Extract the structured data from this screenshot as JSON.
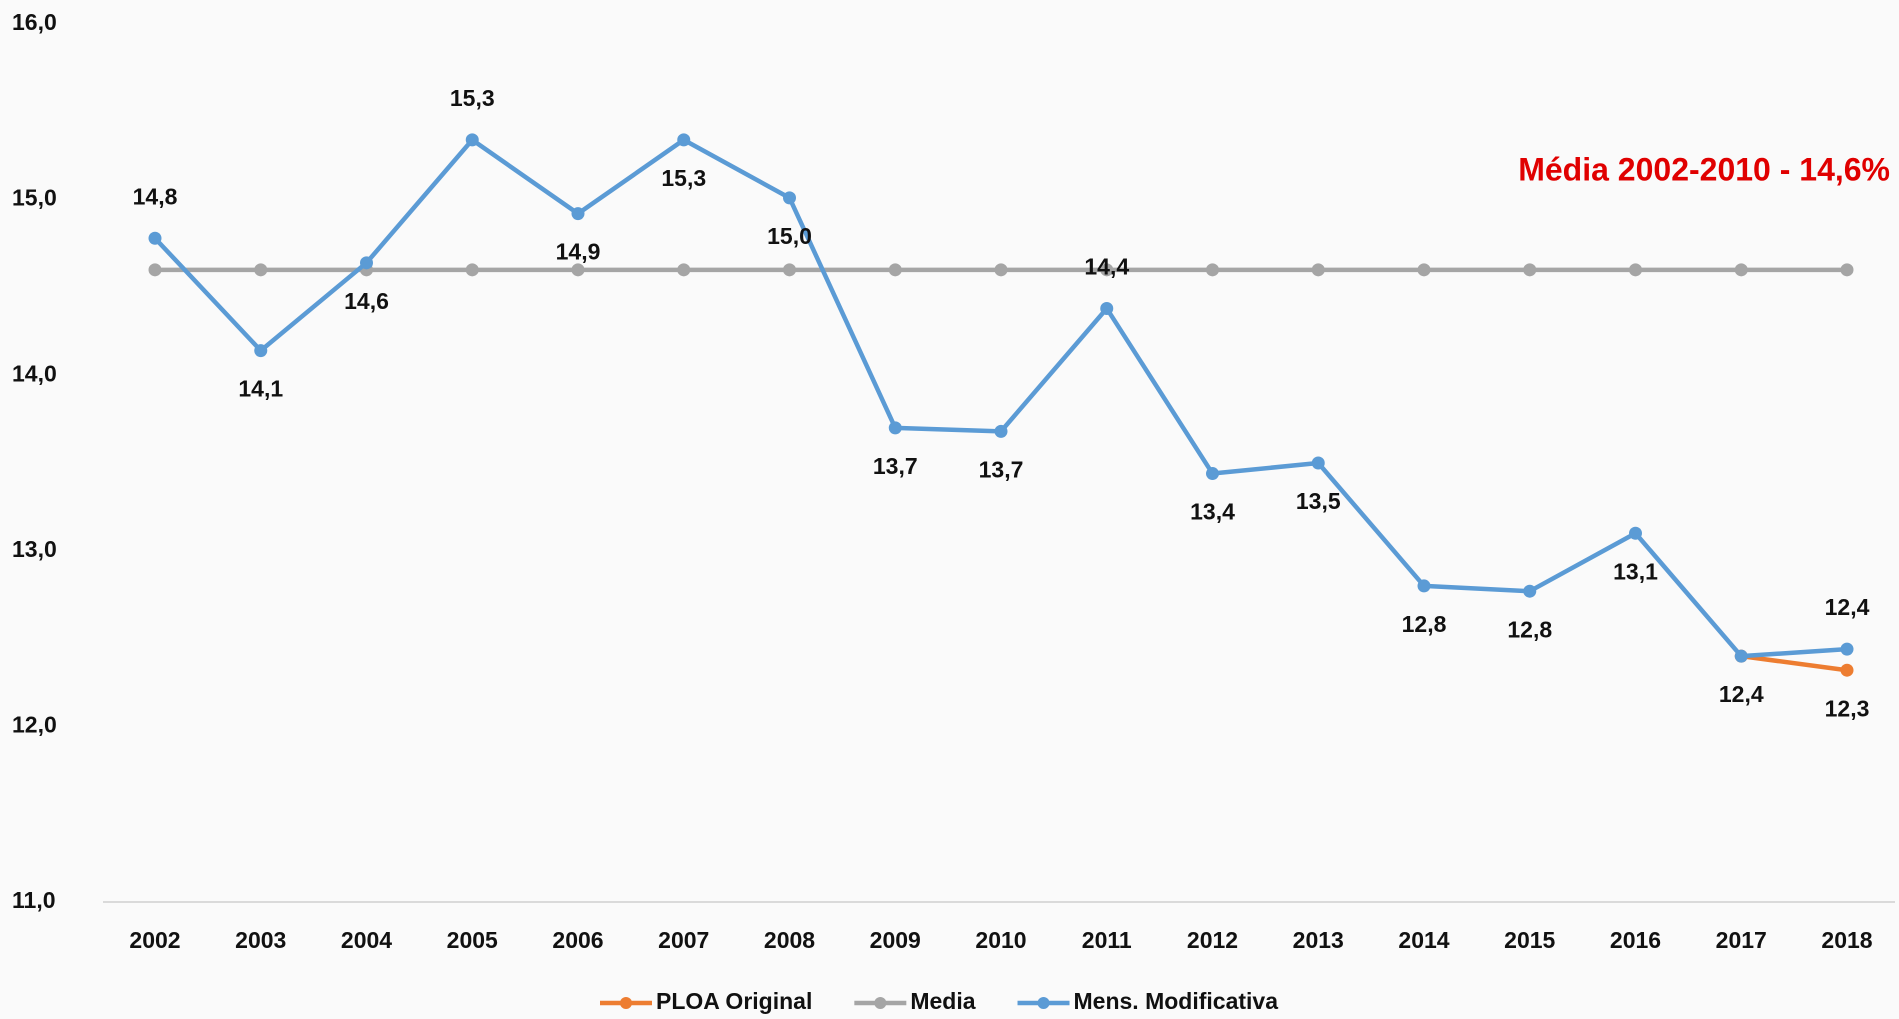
{
  "chart_data": {
    "type": "line",
    "annotation": "Média 2002-2010 - 14,6%",
    "categories": [
      "2002",
      "2003",
      "2004",
      "2005",
      "2006",
      "2007",
      "2008",
      "2009",
      "2010",
      "2011",
      "2012",
      "2013",
      "2014",
      "2015",
      "2016",
      "2017",
      "2018"
    ],
    "series": [
      {
        "name": "PLOA Original",
        "color": "#ed7d31",
        "values": [
          null,
          null,
          null,
          null,
          null,
          null,
          null,
          null,
          null,
          null,
          null,
          null,
          null,
          null,
          null,
          12.4,
          12.32
        ],
        "value_labels": [
          null,
          null,
          null,
          null,
          null,
          null,
          null,
          null,
          null,
          null,
          null,
          null,
          null,
          null,
          null,
          null,
          "12,3"
        ]
      },
      {
        "name": "Media",
        "color": "#a5a5a5",
        "values": [
          14.6,
          14.6,
          14.6,
          14.6,
          14.6,
          14.6,
          14.6,
          14.6,
          14.6,
          14.6,
          14.6,
          14.6,
          14.6,
          14.6,
          14.6,
          14.6,
          14.6
        ]
      },
      {
        "name": "Mens. Modificativa",
        "color": "#5b9bd5",
        "values": [
          14.78,
          14.14,
          14.64,
          15.34,
          14.92,
          15.34,
          15.01,
          13.7,
          13.68,
          14.38,
          13.44,
          13.5,
          12.8,
          12.77,
          13.1,
          12.4,
          12.44
        ],
        "value_labels": [
          "14,8",
          "14,1",
          "14,6",
          "15,3",
          "14,9",
          "15,3",
          "15,0",
          "13,7",
          "13,7",
          "14,4",
          "13,4",
          "13,5",
          "12,8",
          "12,8",
          "13,1",
          "12,4",
          "12,4"
        ]
      }
    ],
    "ylim": [
      11,
      16
    ],
    "yticks": [
      {
        "value": 11,
        "label": "11,0"
      },
      {
        "value": 12,
        "label": "12,0"
      },
      {
        "value": 13,
        "label": "13,0"
      },
      {
        "value": 14,
        "label": "14,0"
      },
      {
        "value": 15,
        "label": "15,0"
      },
      {
        "value": 16,
        "label": "16,0"
      }
    ],
    "legend": "bottom"
  }
}
